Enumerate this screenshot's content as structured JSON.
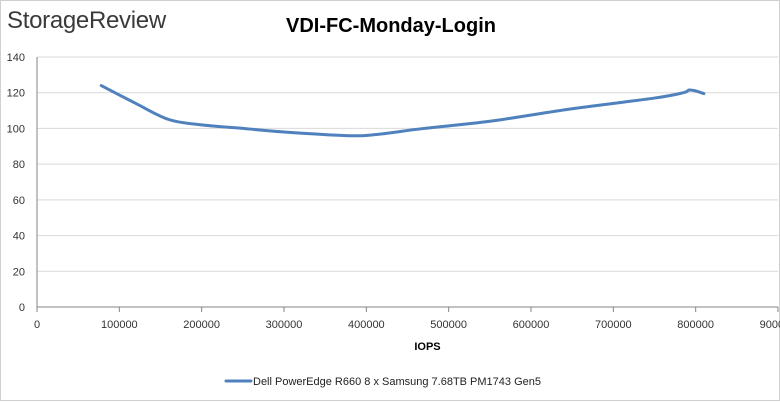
{
  "header": {
    "logo_text": "StorageReview"
  },
  "chart_data": {
    "type": "line",
    "title": "VDI-FC-Monday-Login",
    "xlabel": "IOPS",
    "ylabel": "",
    "xlim": [
      0,
      900000
    ],
    "ylim": [
      0,
      140
    ],
    "x_ticks": [
      0,
      100000,
      200000,
      300000,
      400000,
      500000,
      600000,
      700000,
      800000,
      900000
    ],
    "y_ticks": [
      0,
      20,
      40,
      60,
      80,
      100,
      120,
      140
    ],
    "grid": "horizontal",
    "legend_position": "bottom",
    "series": [
      {
        "name": "Dell PowerEdge R660 8 x Samsung 7.68TB PM1743 Gen5",
        "color": "#4f81bd",
        "points": [
          [
            78000,
            124
          ],
          [
            120000,
            114
          ],
          [
            160000,
            105
          ],
          [
            200000,
            102
          ],
          [
            250000,
            100
          ],
          [
            300000,
            98
          ],
          [
            375000,
            96
          ],
          [
            410000,
            96.5
          ],
          [
            470000,
            100
          ],
          [
            550000,
            104
          ],
          [
            650000,
            111
          ],
          [
            750000,
            117
          ],
          [
            785000,
            120
          ],
          [
            792000,
            121.5
          ],
          [
            800000,
            121
          ],
          [
            810000,
            119.5
          ]
        ]
      }
    ]
  }
}
